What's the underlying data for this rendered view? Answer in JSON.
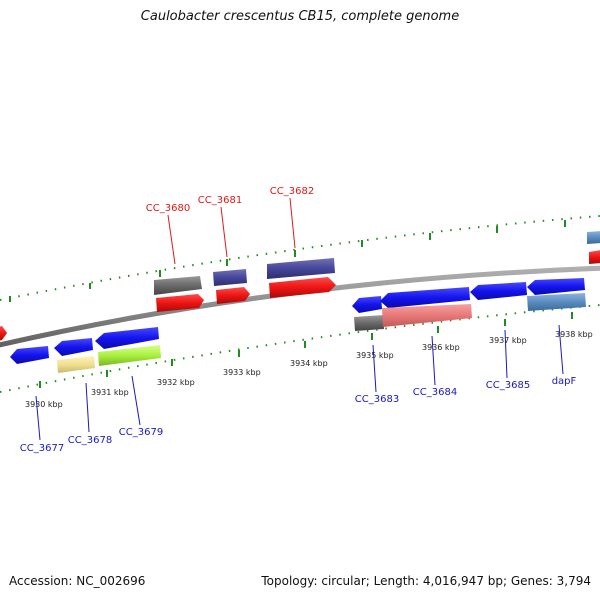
{
  "title": "Caulobacter crescentus CB15, complete genome",
  "footer": {
    "accession": "Accession: NC_002696",
    "topology": "Topology: circular; Length: 4,016,947 bp; Genes: 3,794"
  },
  "colors": {
    "cds": "#1010e6",
    "trna": "#e61010",
    "backbone": "#8a8a8a",
    "tick": "#1e8c1e",
    "label_forward": "#e01818",
    "label_reverse": "#1818c8"
  },
  "kbp_labels": [
    "3930 kbp",
    "3931 kbp",
    "3932 kbp",
    "3933 kbp",
    "3934 kbp",
    "3935 kbp",
    "3936 kbp",
    "3937 kbp",
    "3938 kbp"
  ],
  "gene_labels": {
    "forward": [
      "CC_3680",
      "CC_3681",
      "CC_3682"
    ],
    "reverse": [
      "CC_3677",
      "CC_3678",
      "CC_3679",
      "CC_3683",
      "CC_3684",
      "CC_3685",
      "dapF"
    ]
  }
}
